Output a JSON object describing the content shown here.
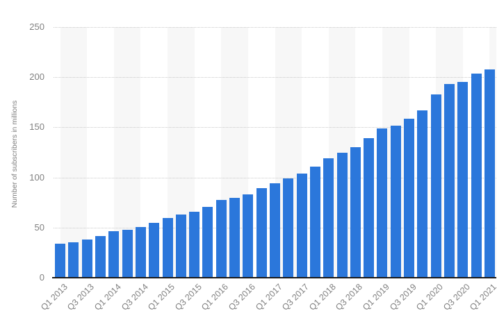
{
  "chart_data": {
    "type": "bar",
    "title": "",
    "xlabel": "",
    "ylabel": "Number of subscribers in millions",
    "ylim": [
      0,
      250
    ],
    "y_ticks": [
      0,
      50,
      100,
      150,
      200,
      250
    ],
    "grid": "horizontal-dotted",
    "legend": "none",
    "label_every": 2,
    "categories": [
      "Q1 2013",
      "Q2 2013",
      "Q3 2013",
      "Q4 2013",
      "Q1 2014",
      "Q2 2014",
      "Q3 2014",
      "Q4 2014",
      "Q1 2015",
      "Q2 2015",
      "Q3 2015",
      "Q4 2015",
      "Q1 2016",
      "Q2 2016",
      "Q3 2016",
      "Q4 2016",
      "Q1 2017",
      "Q2 2017",
      "Q3 2017",
      "Q4 2017",
      "Q1 2018",
      "Q2 2018",
      "Q3 2018",
      "Q4 2018",
      "Q1 2019",
      "Q2 2019",
      "Q3 2019",
      "Q4 2019",
      "Q1 2020",
      "Q2 2020",
      "Q3 2020",
      "Q4 2020",
      "Q1 2021"
    ],
    "values": [
      34.24,
      35.63,
      38.01,
      41.43,
      46.13,
      47.99,
      50.65,
      54.48,
      59.62,
      62.71,
      66.02,
      70.84,
      77.71,
      79.9,
      83.28,
      89.09,
      94.36,
      99.04,
      104.02,
      110.64,
      118.9,
      124.35,
      130.42,
      139.26,
      148.86,
      151.56,
      158.33,
      167.09,
      182.86,
      192.95,
      195.15,
      203.66,
      207.64
    ],
    "x_tick_labels": [
      "Q1 2013",
      "Q3 2013",
      "Q1 2014",
      "Q3 2014",
      "Q1 2015",
      "Q3 2015",
      "Q1 2016",
      "Q3 2016",
      "Q1 2017",
      "Q3 2017",
      "Q1 2018",
      "Q3 2018",
      "Q1 2019",
      "Q3 2019",
      "Q1 2020",
      "Q3 2020",
      "Q1 2021"
    ]
  },
  "colors": {
    "bar": "#2b77db",
    "axis_line": "#1a1a1a",
    "gridline": "#c9c9c9",
    "tick_text": "#808080",
    "stripe": "#f7f7f7",
    "background": "#ffffff"
  }
}
